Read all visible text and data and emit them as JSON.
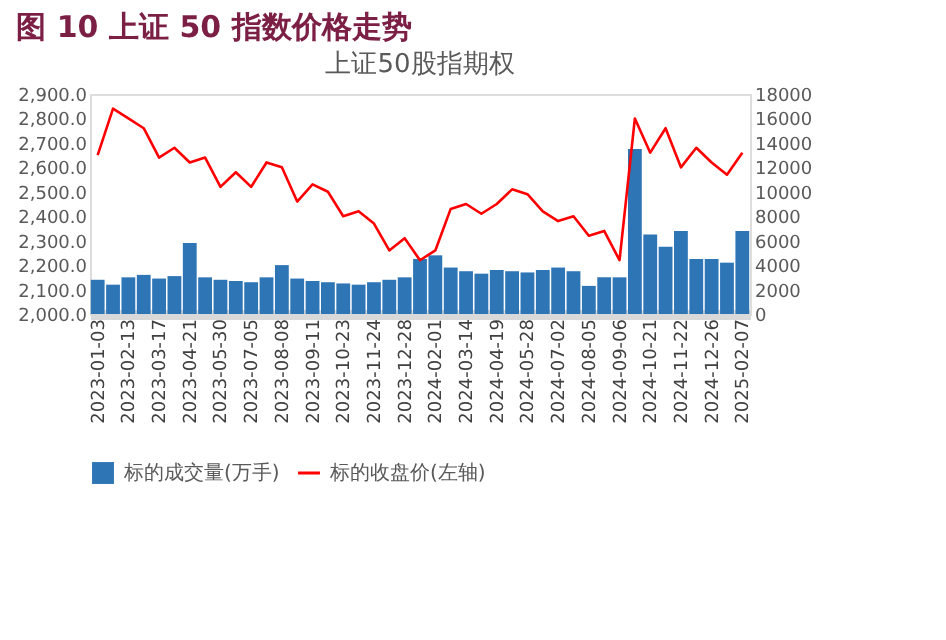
{
  "chart_data": {
    "type": "line",
    "title": "图 10 上证 50 指数价格走势",
    "subtitle": "上证50股指期权",
    "categories": [
      "2023-01-03",
      null,
      "2023-02-13",
      null,
      "2023-03-17",
      null,
      "2023-04-21",
      null,
      "2023-05-30",
      null,
      "2023-07-05",
      null,
      "2023-08-08",
      null,
      "2023-09-11",
      null,
      "2023-10-23",
      null,
      "2023-11-24",
      null,
      "2023-12-28",
      null,
      "2024-02-01",
      null,
      "2024-03-14",
      null,
      "2024-04-19",
      null,
      "2024-05-28",
      null,
      "2024-07-02",
      null,
      "2024-08-05",
      null,
      "2024-09-06",
      null,
      "2024-10-21",
      null,
      "2024-11-22",
      null,
      "2024-12-26",
      null,
      "2025-02-07"
    ],
    "series": [
      {
        "name": "标的成交量(万手)",
        "type": "bar",
        "axis": "y2",
        "color": "#2e75b6",
        "values": [
          2800,
          2400,
          3000,
          3200,
          2900,
          3100,
          5800,
          3000,
          2800,
          2700,
          2600,
          3000,
          4000,
          2900,
          2700,
          2600,
          2500,
          2400,
          2600,
          2800,
          3000,
          4500,
          4800,
          3800,
          3500,
          3300,
          3600,
          3500,
          3400,
          3600,
          3800,
          3500,
          2300,
          3000,
          3000,
          13500,
          6500,
          5500,
          6800,
          4500,
          4500,
          4200,
          6800
        ]
      },
      {
        "name": "标的收盘价(左轴)",
        "color": "#ff0000",
        "values": [
          2650,
          2840,
          2800,
          2760,
          2640,
          2680,
          2620,
          2640,
          2520,
          2580,
          2520,
          2620,
          2600,
          2460,
          2530,
          2500,
          2400,
          2420,
          2370,
          2260,
          2310,
          2220,
          2260,
          2430,
          2450,
          2410,
          2450,
          2510,
          2490,
          2420,
          2380,
          2400,
          2320,
          2340,
          2220,
          2800,
          2660,
          2760,
          2600,
          2680,
          2620,
          2570,
          2660
        ]
      }
    ],
    "ylim": [
      2000,
      2900
    ],
    "yticks": [
      {
        "value": 2000,
        "label": "2,000.0"
      },
      {
        "value": 2100,
        "label": "2,100.0"
      },
      {
        "value": 2200,
        "label": "2,200.0"
      },
      {
        "value": 2300,
        "label": "2,300.0"
      },
      {
        "value": 2400,
        "label": "2,400.0"
      },
      {
        "value": 2500,
        "label": "2,500.0"
      },
      {
        "value": 2600,
        "label": "2,600.0"
      },
      {
        "value": 2700,
        "label": "2,700.0"
      },
      {
        "value": 2800,
        "label": "2,800.0"
      },
      {
        "value": 2900,
        "label": "2,900.0"
      }
    ],
    "y2lim": [
      0,
      18000
    ],
    "y2ticks": [
      0,
      2000,
      4000,
      6000,
      8000,
      10000,
      12000,
      14000,
      16000,
      18000
    ],
    "grid": false,
    "legend": "bottom"
  }
}
